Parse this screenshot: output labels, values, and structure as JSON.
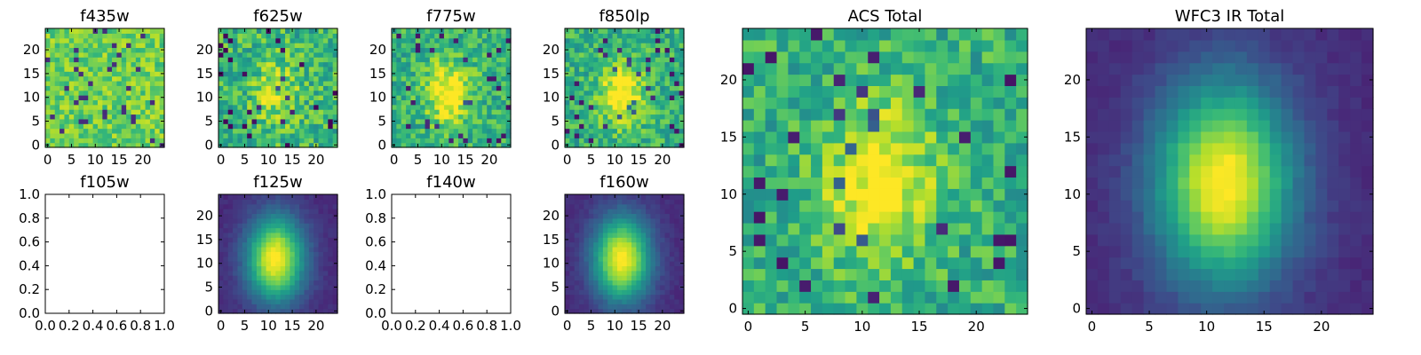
{
  "chart_data": [
    {
      "type": "heatmap",
      "title": "f435w",
      "colormap": "viridis",
      "x_ticks": [
        "0",
        "5",
        "10",
        "15",
        "20"
      ],
      "y_ticks": [
        "0",
        "5",
        "10",
        "15",
        "20"
      ],
      "grid_size": 25,
      "pattern": "noise-bright",
      "xlim": [
        -0.5,
        24.5
      ],
      "ylim": [
        -0.5,
        24.5
      ]
    },
    {
      "type": "heatmap",
      "title": "f625w",
      "colormap": "viridis",
      "x_ticks": [
        "0",
        "5",
        "10",
        "15",
        "20"
      ],
      "y_ticks": [
        "0",
        "5",
        "10",
        "15",
        "20"
      ],
      "grid_size": 25,
      "pattern": "noise-faint-source",
      "xlim": [
        -0.5,
        24.5
      ],
      "ylim": [
        -0.5,
        24.5
      ]
    },
    {
      "type": "heatmap",
      "title": "f775w",
      "colormap": "viridis",
      "x_ticks": [
        "0",
        "5",
        "10",
        "15",
        "20"
      ],
      "y_ticks": [
        "0",
        "5",
        "10",
        "15",
        "20"
      ],
      "grid_size": 25,
      "pattern": "noise-source",
      "xlim": [
        -0.5,
        24.5
      ],
      "ylim": [
        -0.5,
        24.5
      ]
    },
    {
      "type": "heatmap",
      "title": "f850lp",
      "colormap": "viridis",
      "x_ticks": [
        "0",
        "5",
        "10",
        "15",
        "20"
      ],
      "y_ticks": [
        "0",
        "5",
        "10",
        "15",
        "20"
      ],
      "grid_size": 25,
      "pattern": "noise-source",
      "xlim": [
        -0.5,
        24.5
      ],
      "ylim": [
        -0.5,
        24.5
      ]
    },
    {
      "type": "heatmap",
      "title": "ACS Total",
      "colormap": "viridis",
      "x_ticks": [
        "0",
        "5",
        "10",
        "15",
        "20"
      ],
      "y_ticks": [
        "0",
        "5",
        "10",
        "15",
        "20"
      ],
      "grid_size": 25,
      "pattern": "noise-source",
      "xlim": [
        -0.5,
        24.5
      ],
      "ylim": [
        -0.5,
        24.5
      ]
    },
    {
      "type": "heatmap",
      "title": "WFC3 IR Total",
      "colormap": "viridis",
      "x_ticks": [
        "0",
        "5",
        "10",
        "15",
        "20"
      ],
      "y_ticks": [
        "0",
        "5",
        "10",
        "15",
        "20"
      ],
      "grid_size": 25,
      "pattern": "smooth-source",
      "xlim": [
        -0.5,
        24.5
      ],
      "ylim": [
        -0.5,
        24.5
      ]
    },
    {
      "type": "empty",
      "title": "f105w",
      "x_ticks": [
        "0.0",
        "0.2",
        "0.4",
        "0.6",
        "0.8",
        "1.0"
      ],
      "y_ticks": [
        "0.0",
        "0.2",
        "0.4",
        "0.6",
        "0.8",
        "1.0"
      ],
      "xlim": [
        0,
        1
      ],
      "ylim": [
        0,
        1
      ]
    },
    {
      "type": "heatmap",
      "title": "f125w",
      "colormap": "viridis",
      "x_ticks": [
        "0",
        "5",
        "10",
        "15",
        "20"
      ],
      "y_ticks": [
        "0",
        "5",
        "10",
        "15",
        "20"
      ],
      "grid_size": 25,
      "pattern": "smooth-source",
      "xlim": [
        -0.5,
        24.5
      ],
      "ylim": [
        -0.5,
        24.5
      ]
    },
    {
      "type": "empty",
      "title": "f140w",
      "x_ticks": [
        "0.0",
        "0.2",
        "0.4",
        "0.6",
        "0.8",
        "1.0"
      ],
      "y_ticks": [
        "0.0",
        "0.2",
        "0.4",
        "0.6",
        "0.8",
        "1.0"
      ],
      "xlim": [
        0,
        1
      ],
      "ylim": [
        0,
        1
      ]
    },
    {
      "type": "heatmap",
      "title": "f160w",
      "colormap": "viridis",
      "x_ticks": [
        "0",
        "5",
        "10",
        "15",
        "20"
      ],
      "y_ticks": [
        "0",
        "5",
        "10",
        "15",
        "20"
      ],
      "grid_size": 25,
      "pattern": "smooth-source",
      "xlim": [
        -0.5,
        24.5
      ],
      "ylim": [
        -0.5,
        24.5
      ]
    }
  ]
}
